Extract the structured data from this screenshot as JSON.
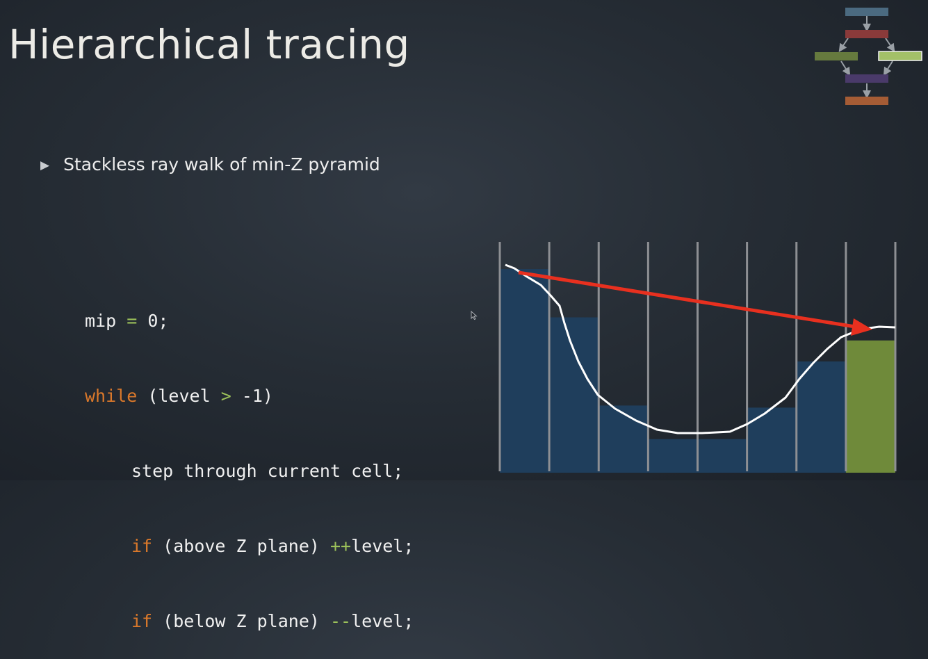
{
  "slide": {
    "title": "Hierarchical tracing",
    "bullet": "Stackless ray walk of min-Z pyramid"
  },
  "code": {
    "line1": {
      "a": "mip ",
      "b": "=",
      "c": " 0;"
    },
    "line2": {
      "kw": "while",
      "a": " (level ",
      "op": ">",
      "b": " -1)"
    },
    "line3": {
      "text": "step through current cell;"
    },
    "line4": {
      "kw": "if",
      "a": " (above Z plane) ",
      "op": "++",
      "b": "level;"
    },
    "line5": {
      "kw": "if",
      "a": " (below Z plane) ",
      "op": "--",
      "b": "level;"
    }
  },
  "diagram": {
    "cells": [
      {
        "depth": 0.03,
        "type": "blue"
      },
      {
        "depth": 0.26,
        "type": "blue"
      },
      {
        "depth": 0.68,
        "type": "blue"
      },
      {
        "depth": 0.84,
        "type": "blue"
      },
      {
        "depth": 0.84,
        "type": "blue"
      },
      {
        "depth": 0.69,
        "type": "blue"
      },
      {
        "depth": 0.47,
        "type": "blue"
      },
      {
        "depth": 0.37,
        "type": "green"
      }
    ],
    "colors": {
      "cell_blue": "#1f3e5c",
      "cell_green": "#6f8a3a",
      "grid_line": "#8d8f93",
      "surface": "#ffffff",
      "ray": "#e8301f"
    }
  },
  "flowchart": {
    "colors": [
      "#4b6a80",
      "#8a3a3a",
      "#667a3e",
      "#a3c068",
      "#4a3a6a",
      "#a55c35"
    ]
  }
}
